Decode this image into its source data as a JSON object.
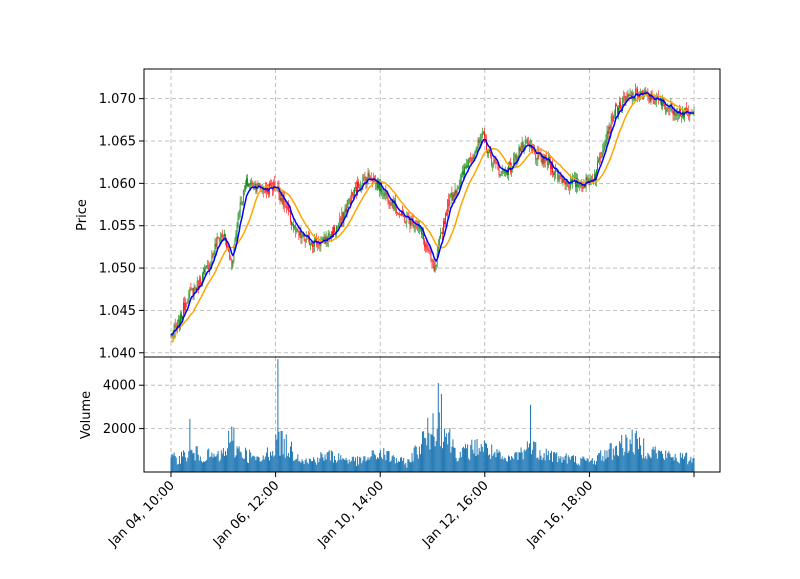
{
  "chart_data": {
    "type": "candlestick",
    "panels": [
      {
        "name": "price",
        "ylabel": "Price",
        "ylim": [
          1.0395,
          1.0735
        ],
        "yticks": [
          "1.040",
          "1.045",
          "1.050",
          "1.055",
          "1.060",
          "1.065",
          "1.070"
        ],
        "grid": true
      },
      {
        "name": "volume",
        "ylabel": "Volume",
        "ylim": [
          0,
          5300
        ],
        "yticks": [
          "2000",
          "4000"
        ],
        "grid": true
      }
    ],
    "xticks": [
      "Jan 04, 10:00",
      "Jan 06, 12:00",
      "Jan 10, 14:00",
      "Jan 12, 16:00",
      "Jan 16, 18:00"
    ],
    "bar_count": 500,
    "colors": {
      "up": "#008000",
      "down": "#ff0000",
      "fast_ma": "#0000ff",
      "slow_ma": "#ffa500",
      "volume": "#1f77b4"
    },
    "price_path": [
      {
        "i": 0,
        "v": 1.0421
      },
      {
        "i": 8,
        "v": 1.0435
      },
      {
        "i": 15,
        "v": 1.0465
      },
      {
        "i": 25,
        "v": 1.048
      },
      {
        "i": 35,
        "v": 1.05
      },
      {
        "i": 45,
        "v": 1.0535
      },
      {
        "i": 50,
        "v": 1.054
      },
      {
        "i": 58,
        "v": 1.0505
      },
      {
        "i": 65,
        "v": 1.057
      },
      {
        "i": 72,
        "v": 1.06
      },
      {
        "i": 80,
        "v": 1.0598
      },
      {
        "i": 90,
        "v": 1.0592
      },
      {
        "i": 100,
        "v": 1.0598
      },
      {
        "i": 110,
        "v": 1.057
      },
      {
        "i": 120,
        "v": 1.054
      },
      {
        "i": 130,
        "v": 1.0532
      },
      {
        "i": 145,
        "v": 1.053
      },
      {
        "i": 160,
        "v": 1.055
      },
      {
        "i": 170,
        "v": 1.058
      },
      {
        "i": 180,
        "v": 1.06
      },
      {
        "i": 190,
        "v": 1.061
      },
      {
        "i": 200,
        "v": 1.0595
      },
      {
        "i": 210,
        "v": 1.058
      },
      {
        "i": 220,
        "v": 1.056
      },
      {
        "i": 235,
        "v": 1.0552
      },
      {
        "i": 245,
        "v": 1.052
      },
      {
        "i": 252,
        "v": 1.0495
      },
      {
        "i": 256,
        "v": 1.053
      },
      {
        "i": 265,
        "v": 1.058
      },
      {
        "i": 275,
        "v": 1.06
      },
      {
        "i": 285,
        "v": 1.063
      },
      {
        "i": 298,
        "v": 1.0655
      },
      {
        "i": 305,
        "v": 1.063
      },
      {
        "i": 315,
        "v": 1.0612
      },
      {
        "i": 325,
        "v": 1.062
      },
      {
        "i": 332,
        "v": 1.064
      },
      {
        "i": 340,
        "v": 1.0645
      },
      {
        "i": 350,
        "v": 1.063
      },
      {
        "i": 360,
        "v": 1.0625
      },
      {
        "i": 370,
        "v": 1.0608
      },
      {
        "i": 380,
        "v": 1.06
      },
      {
        "i": 395,
        "v": 1.06
      },
      {
        "i": 405,
        "v": 1.061
      },
      {
        "i": 413,
        "v": 1.065
      },
      {
        "i": 423,
        "v": 1.0685
      },
      {
        "i": 435,
        "v": 1.07
      },
      {
        "i": 447,
        "v": 1.0707
      },
      {
        "i": 460,
        "v": 1.07
      },
      {
        "i": 475,
        "v": 1.069
      },
      {
        "i": 490,
        "v": 1.0682
      },
      {
        "i": 499,
        "v": 1.068
      }
    ],
    "volume_spikes": [
      {
        "i": 18,
        "v": 2450
      },
      {
        "i": 55,
        "v": 1900
      },
      {
        "i": 58,
        "v": 2100
      },
      {
        "i": 60,
        "v": 2050
      },
      {
        "i": 102,
        "v": 5200
      },
      {
        "i": 255,
        "v": 4100
      },
      {
        "i": 258,
        "v": 3600
      },
      {
        "i": 343,
        "v": 3100
      }
    ],
    "volume_bumps": [
      {
        "i": 0,
        "v": 600
      },
      {
        "i": 20,
        "v": 900
      },
      {
        "i": 45,
        "v": 700
      },
      {
        "i": 60,
        "v": 1200
      },
      {
        "i": 85,
        "v": 500
      },
      {
        "i": 103,
        "v": 1500
      },
      {
        "i": 130,
        "v": 500
      },
      {
        "i": 150,
        "v": 800
      },
      {
        "i": 180,
        "v": 500
      },
      {
        "i": 200,
        "v": 900
      },
      {
        "i": 225,
        "v": 400
      },
      {
        "i": 255,
        "v": 2500
      },
      {
        "i": 275,
        "v": 800
      },
      {
        "i": 295,
        "v": 1300
      },
      {
        "i": 320,
        "v": 500
      },
      {
        "i": 342,
        "v": 1200
      },
      {
        "i": 370,
        "v": 700
      },
      {
        "i": 400,
        "v": 500
      },
      {
        "i": 438,
        "v": 1500
      },
      {
        "i": 470,
        "v": 800
      },
      {
        "i": 499,
        "v": 600
      }
    ]
  }
}
